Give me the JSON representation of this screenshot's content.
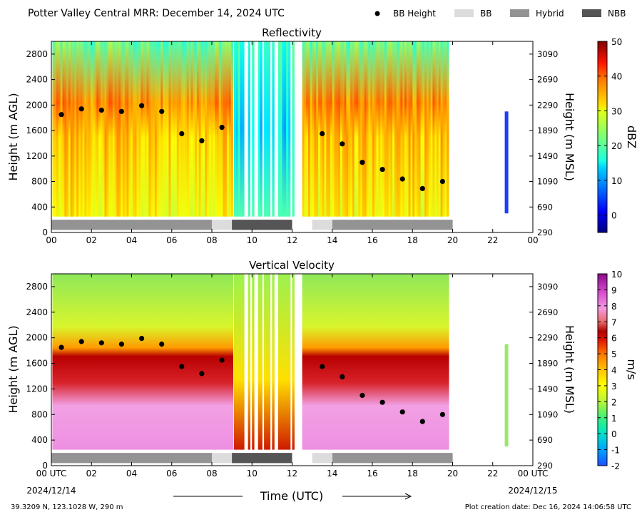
{
  "header": {
    "title": "Potter Valley Central MRR:  December 14, 2024 UTC",
    "legend": [
      {
        "label": "BB Height",
        "kind": "dot",
        "color": "#000000"
      },
      {
        "label": "BB",
        "kind": "box",
        "color": "#dcdcdc"
      },
      {
        "label": "Hybrid",
        "kind": "box",
        "color": "#939393"
      },
      {
        "label": "NBB",
        "kind": "box",
        "color": "#555555"
      }
    ]
  },
  "footer": {
    "location": "39.3209 N, 123.1028 W, 290 m",
    "created": "Plot creation date: Dec 16, 2024 14:06:58 UTC",
    "xlabel": "Time (UTC)",
    "date_start": "2024/12/14",
    "date_end": "2024/12/15"
  },
  "chart_data": [
    {
      "type": "heatmap",
      "title": "Reflectivity",
      "ylabel": "Height (m AGL)",
      "ylabel_right": "Height (m MSL)",
      "colorbar_label": "dBZ",
      "colorbar_range": [
        -5,
        50
      ],
      "colorbar_ticks": [
        "0",
        "10",
        "20",
        "30",
        "40",
        "50"
      ],
      "colorbar_tick_values": [
        0,
        10,
        20,
        30,
        40,
        50
      ],
      "xlim": [
        0,
        24
      ],
      "ylim": [
        0,
        3000
      ],
      "x_ticks": [
        "00",
        "02",
        "04",
        "06",
        "08",
        "10",
        "12",
        "14",
        "16",
        "18",
        "20",
        "22",
        "00"
      ],
      "y_ticks": [
        "0",
        "400",
        "800",
        "1200",
        "1600",
        "2000",
        "2400",
        "2800"
      ],
      "y_right_ticks": [
        "290",
        "690",
        "1090",
        "1490",
        "1890",
        "2290",
        "2690",
        "3090"
      ],
      "bb_height": {
        "x": [
          0.5,
          1.5,
          2.5,
          3.5,
          4.5,
          5.5,
          6.5,
          7.5,
          8.5,
          13.5,
          14.5,
          15.5,
          16.5,
          17.5,
          18.5,
          19.5
        ],
        "y": [
          1850,
          1940,
          1920,
          1900,
          1990,
          1900,
          1550,
          1440,
          1650,
          1550,
          1390,
          1100,
          990,
          840,
          690,
          800
        ]
      },
      "regime_bars": [
        {
          "type": "Hybrid",
          "start": 0.0,
          "end": 8.0
        },
        {
          "type": "BB",
          "start": 8.0,
          "end": 9.0
        },
        {
          "type": "NBB",
          "start": 9.0,
          "end": 12.0
        },
        {
          "type": "BB",
          "start": 13.0,
          "end": 14.0
        },
        {
          "type": "Hybrid",
          "start": 14.0,
          "end": 20.0
        }
      ]
    },
    {
      "type": "heatmap",
      "title": "Vertical Velocity",
      "ylabel": "Height (m AGL)",
      "ylabel_right": "Height (m MSL)",
      "colorbar_label": "m/s",
      "colorbar_range": [
        -2,
        10
      ],
      "colorbar_ticks": [
        "-2",
        "-1",
        "0",
        "1",
        "2",
        "3",
        "4",
        "5",
        "6",
        "7",
        "8",
        "9",
        "10"
      ],
      "colorbar_tick_values": [
        -2,
        -1,
        0,
        1,
        2,
        3,
        4,
        5,
        6,
        7,
        8,
        9,
        10
      ],
      "xlim": [
        0,
        24
      ],
      "ylim": [
        0,
        3000
      ],
      "x_ticks": [
        "00 UTC",
        "02",
        "04",
        "06",
        "08",
        "10",
        "12",
        "14",
        "16",
        "18",
        "20",
        "22",
        "00 UTC"
      ],
      "y_ticks": [
        "0",
        "400",
        "800",
        "1200",
        "1600",
        "2000",
        "2400",
        "2800"
      ],
      "y_right_ticks": [
        "290",
        "690",
        "1090",
        "1490",
        "1890",
        "2290",
        "2690",
        "3090"
      ],
      "bb_height": {
        "x": [
          0.5,
          1.5,
          2.5,
          3.5,
          4.5,
          5.5,
          6.5,
          7.5,
          8.5,
          13.5,
          14.5,
          15.5,
          16.5,
          17.5,
          18.5,
          19.5
        ],
        "y": [
          1850,
          1940,
          1920,
          1900,
          1990,
          1900,
          1550,
          1440,
          1650,
          1550,
          1390,
          1100,
          990,
          840,
          690,
          800
        ]
      },
      "regime_bars": [
        {
          "type": "Hybrid",
          "start": 0.0,
          "end": 8.0
        },
        {
          "type": "BB",
          "start": 8.0,
          "end": 9.0
        },
        {
          "type": "NBB",
          "start": 9.0,
          "end": 12.0
        },
        {
          "type": "BB",
          "start": 13.0,
          "end": 14.0
        },
        {
          "type": "Hybrid",
          "start": 14.0,
          "end": 20.0
        }
      ]
    }
  ]
}
